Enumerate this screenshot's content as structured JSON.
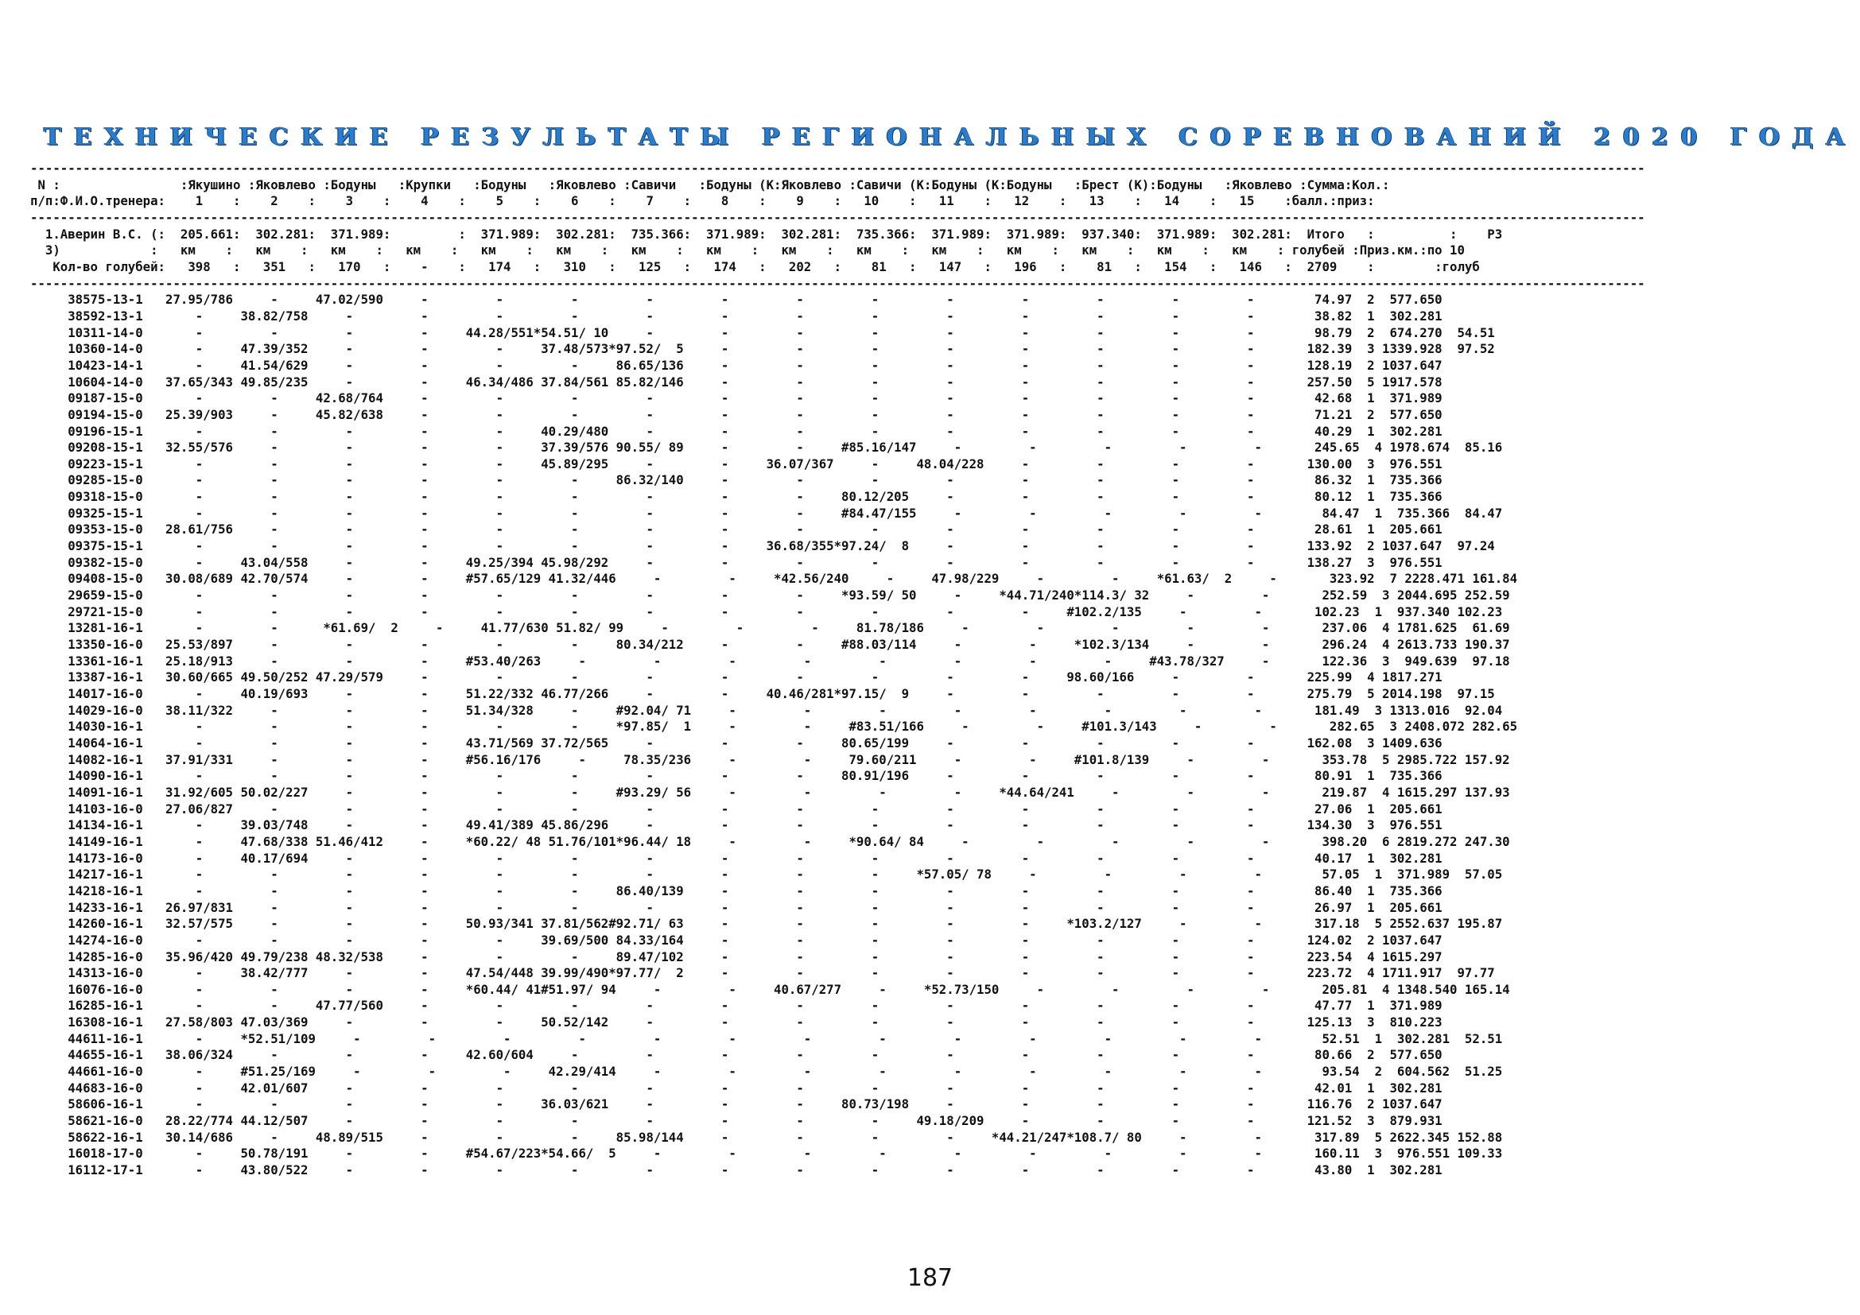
{
  "title": "ТЕХНИЧЕСКИЕ РЕЗУЛЬТАТЫ РЕГИОНАЛЬНЫХ СОРЕВНОВАНИЙ 2020 ГОДА",
  "report_lines": [
    "-----------------------------------------------------------------------------------------------------------------------------------------------------------------------------------------------------------------------",
    " N :                :Якушино :Яковлево :Бодуны   :Крупки   :Бодуны   :Яковлево :Савичи   :Бодуны (К:Яковлево :Савичи (К:Бодуны (К:Бодуны   :Брест (К):Бодуны   :Яковлево :Сумма:Кол.:",
    "п/п:Ф.И.О.тренера:    1    :    2    :    3    :    4    :    5    :    6    :    7    :    8    :    9    :   10    :   11    :   12    :   13    :   14    :   15    :балл.:приз:",
    "-----------------------------------------------------------------------------------------------------------------------------------------------------------------------------------------------------------------------",
    "  1.Аверин В.С. (:  205.661:  302.281:  371.989:         :  371.989:  302.281:  735.366:  371.989:  302.281:  735.366:  371.989:  371.989:  937.340:  371.989:  302.281:  Итого   :          :    РЗ",
    "  З)            :   км    :   км    :   км    :   км    :   км    :   км    :   км    :   км    :   км    :   км    :   км    :   км    :   км    :   км    :   км    : голубей :Приз.км.:по 10",
    "   Кол-во голубей:   398   :   351   :   170   :    -    :   174   :   310   :   125   :   174   :   202   :    81   :   147   :   196   :    81   :   154   :   146   :  2709    :        :голуб",
    "-----------------------------------------------------------------------------------------------------------------------------------------------------------------------------------------------------------------------",
    "     38575-13-1   27.95/786     -     47.02/590     -         -         -         -         -         -         -         -         -         -         -         -        74.97  2  577.650",
    "     38592-13-1       -     38.82/758     -         -         -         -         -         -         -         -         -         -         -         -         -        38.82  1  302.281",
    "     10311-14-0       -         -         -         -     44.28/551*54.51/ 10     -         -         -         -         -         -         -         -         -        98.79  2  674.270  54.51",
    "     10360-14-0       -     47.39/352     -         -         -     37.48/573*97.52/  5     -         -         -         -         -         -         -         -       182.39  3 1339.928  97.52",
    "     10423-14-1       -     41.54/629     -         -         -         -     86.65/136     -         -         -         -         -         -         -         -       128.19  2 1037.647",
    "     10604-14-0   37.65/343 49.85/235     -         -     46.34/486 37.84/561 85.82/146     -         -         -         -         -         -         -         -       257.50  5 1917.578",
    "     09187-15-0       -         -     42.68/764     -         -         -         -         -         -         -         -         -         -         -         -        42.68  1  371.989",
    "     09194-15-0   25.39/903     -     45.82/638     -         -         -         -         -         -         -         -         -         -         -         -        71.21  2  577.650",
    "     09196-15-1       -         -         -         -         -     40.29/480     -         -         -         -         -         -         -         -         -        40.29  1  302.281",
    "     09208-15-1   32.55/576     -         -         -         -     37.39/576 90.55/ 89     -         -     #85.16/147     -         -         -         -         -       245.65  4 1978.674  85.16",
    "     09223-15-1       -         -         -         -         -     45.89/295     -         -     36.07/367     -     48.04/228     -         -         -         -       130.00  3  976.551",
    "     09285-15-0       -         -         -         -         -         -     86.32/140     -         -         -         -         -         -         -         -        86.32  1  735.366",
    "     09318-15-0       -         -         -         -         -         -         -         -         -     80.12/205     -         -         -         -         -        80.12  1  735.366",
    "     09325-15-1       -         -         -         -         -         -         -         -         -     #84.47/155     -         -         -         -         -        84.47  1  735.366  84.47",
    "     09353-15-0   28.61/756     -         -         -         -         -         -         -         -         -         -         -         -         -         -        28.61  1  205.661",
    "     09375-15-1       -         -         -         -         -         -         -         -     36.68/355*97.24/  8     -         -         -         -         -       133.92  2 1037.647  97.24",
    "     09382-15-0       -     43.04/558     -         -     49.25/394 45.98/292     -         -         -         -         -         -         -         -         -       138.27  3  976.551",
    "     09408-15-0   30.08/689 42.70/574     -         -     #57.65/129 41.32/446     -         -     *42.56/240     -     47.98/229     -         -     *61.63/  2     -       323.92  7 2228.471 161.84",
    "     29659-15-0       -         -         -         -         -         -         -         -         -     *93.59/ 50     -     *44.71/240*114.3/ 32     -         -       252.59  3 2044.695 252.59",
    "     29721-15-0       -         -         -         -         -         -         -         -         -         -         -         -     #102.2/135     -         -       102.23  1  937.340 102.23",
    "     13281-16-1       -         -      *61.69/  2     -     41.77/630 51.82/ 99     -         -         -     81.78/186     -         -         -         -         -       237.06  4 1781.625  61.69",
    "     13350-16-0   25.53/897     -         -         -         -         -     80.34/212     -         -     #88.03/114     -         -     *102.3/134     -         -       296.24  4 2613.733 190.37",
    "     13361-16-1   25.18/913     -         -         -     #53.40/263     -         -         -         -         -         -         -         -     #43.78/327     -       122.36  3  949.639  97.18",
    "     13387-16-1   30.60/665 49.50/252 47.29/579     -         -         -         -         -         -         -         -         -     98.60/166     -         -       225.99  4 1817.271",
    "     14017-16-0       -     40.19/693     -         -     51.22/332 46.77/266     -         -     40.46/281*97.15/  9     -         -         -         -         -       275.79  5 2014.198  97.15",
    "     14029-16-0   38.11/322     -         -         -     51.34/328     -     #92.04/ 71     -         -         -         -         -         -         -         -       181.49  3 1313.016  92.04",
    "     14030-16-1       -         -         -         -         -         -     *97.85/  1     -         -     #83.51/166     -         -     #101.3/143     -         -       282.65  3 2408.072 282.65",
    "     14064-16-1       -         -         -         -     43.71/569 37.72/565     -         -         -     80.65/199     -         -         -         -         -       162.08  3 1409.636",
    "     14082-16-1   37.91/331     -         -         -     #56.16/176     -     78.35/236     -         -     79.60/211     -         -     #101.8/139     -         -       353.78  5 2985.722 157.92",
    "     14090-16-1       -         -         -         -         -         -         -         -         -     80.91/196     -         -         -         -         -        80.91  1  735.366",
    "     14091-16-1   31.92/605 50.02/227     -         -         -         -     #93.29/ 56     -         -         -         -     *44.64/241     -         -         -       219.87  4 1615.297 137.93",
    "     14103-16-0   27.06/827     -         -         -         -         -         -         -         -         -         -         -         -         -         -        27.06  1  205.661",
    "     14134-16-1       -     39.03/748     -         -     49.41/389 45.86/296     -         -         -         -         -         -         -         -         -       134.30  3  976.551",
    "     14149-16-1       -     47.68/338 51.46/412     -     *60.22/ 48 51.76/101*96.44/ 18     -         -     *90.64/ 84     -         -         -         -         -       398.20  6 2819.272 247.30",
    "     14173-16-0       -     40.17/694     -         -         -         -         -         -         -         -         -         -         -         -         -        40.17  1  302.281",
    "     14217-16-1       -         -         -         -         -         -         -         -         -         -     *57.05/ 78     -         -         -         -        57.05  1  371.989  57.05",
    "     14218-16-1       -         -         -         -         -         -     86.40/139     -         -         -         -         -         -         -         -        86.40  1  735.366",
    "     14233-16-1   26.97/831     -         -         -         -         -         -         -         -         -         -         -         -         -         -        26.97  1  205.661",
    "     14260-16-1   32.57/575     -         -         -     50.93/341 37.81/562#92.71/ 63     -         -         -         -         -     *103.2/127     -         -       317.18  5 2552.637 195.87",
    "     14274-16-0       -         -         -         -         -     39.69/500 84.33/164     -         -         -         -         -         -         -         -       124.02  2 1037.647",
    "     14285-16-0   35.96/420 49.79/238 48.32/538     -         -         -     89.47/102     -         -         -         -         -         -         -         -       223.54  4 1615.297",
    "     14313-16-0       -     38.42/777     -         -     47.54/448 39.99/490*97.77/  2     -         -         -         -         -         -         -         -       223.72  4 1711.917  97.77",
    "     16076-16-0       -         -         -         -     *60.44/ 41#51.97/ 94     -         -     40.67/277     -     *52.73/150     -         -         -         -       205.81  4 1348.540 165.14",
    "     16285-16-1       -         -     47.77/560     -         -         -         -         -         -         -         -         -         -         -         -        47.77  1  371.989",
    "     16308-16-1   27.58/803 47.03/369     -         -         -     50.52/142     -         -         -         -         -         -         -         -         -       125.13  3  810.223",
    "     44611-16-1       -     *52.51/109     -         -         -         -         -         -         -         -         -         -         -         -         -        52.51  1  302.281  52.51",
    "     44655-16-1   38.06/324     -         -         -     42.60/604     -         -         -         -         -         -         -         -         -         -        80.66  2  577.650",
    "     44661-16-0       -     #51.25/169     -         -         -     42.29/414     -         -         -         -         -         -         -         -         -        93.54  2  604.562  51.25",
    "     44683-16-0       -     42.01/607     -         -         -         -         -         -         -         -         -         -         -         -         -        42.01  1  302.281",
    "     58606-16-1       -         -         -         -         -     36.03/621     -         -         -     80.73/198     -         -         -         -         -       116.76  2 1037.647",
    "     58621-16-0   28.22/774 44.12/507     -         -         -         -         -         -         -         -     49.18/209     -         -         -         -       121.52  3  879.931",
    "     58622-16-1   30.14/686     -     48.89/515     -         -         -     85.98/144     -         -         -         -     *44.21/247*108.7/ 80     -         -       317.89  5 2622.345 152.88",
    "     16018-17-0       -     50.78/191     -         -     #54.67/223*54.66/  5     -         -         -         -         -         -         -         -         -       160.11  3  976.551 109.33",
    "     16112-17-1       -     43.80/522     -         -         -         -         -         -         -         -         -         -         -         -         -        43.80  1  302.281"
  ],
  "page_number": "187"
}
